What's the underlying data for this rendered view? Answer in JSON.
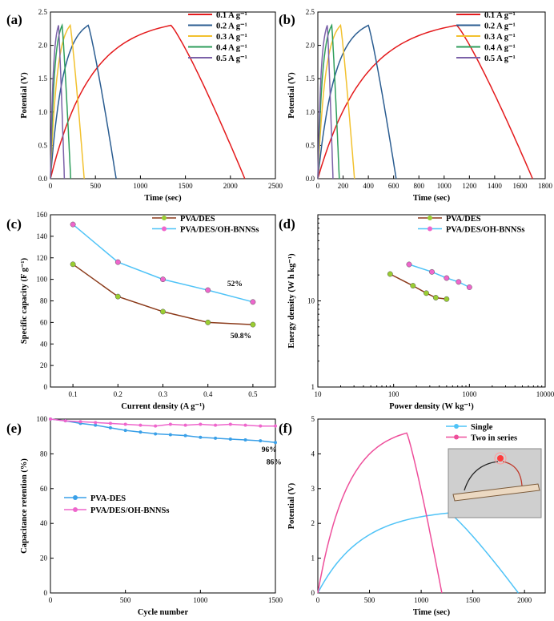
{
  "chart_data": [
    {
      "panel": "(a)",
      "type": "line",
      "xlabel": "Time (sec)",
      "ylabel": "Potential (V)",
      "xlim": [
        0,
        2500
      ],
      "ylim": [
        0,
        2.5
      ],
      "xticks": [
        "0",
        "500",
        "1000",
        "1500",
        "2000",
        "2500"
      ],
      "yticks": [
        "0.0",
        "0.5",
        "1.0",
        "1.5",
        "2.0",
        "2.5"
      ],
      "legend": "top-right",
      "series": [
        {
          "name": "0.1 A g⁻¹",
          "color": "#e41a1c",
          "charge_end": 1340,
          "discharge_end": 2160,
          "vmax": 2.3
        },
        {
          "name": "0.2 A g⁻¹",
          "color": "#2b5d91",
          "charge_end": 420,
          "discharge_end": 730,
          "vmax": 2.3
        },
        {
          "name": "0.3 A g⁻¹",
          "color": "#f2c12e",
          "charge_end": 220,
          "discharge_end": 375,
          "vmax": 2.3
        },
        {
          "name": "0.4 A g⁻¹",
          "color": "#2e9e5b",
          "charge_end": 130,
          "discharge_end": 225,
          "vmax": 2.3
        },
        {
          "name": "0.5 A g⁻¹",
          "color": "#7b61a8",
          "charge_end": 90,
          "discharge_end": 155,
          "vmax": 2.3
        }
      ]
    },
    {
      "panel": "(b)",
      "type": "line",
      "xlabel": "Time (sec)",
      "ylabel": "Potential (V)",
      "xlim": [
        0,
        1800
      ],
      "ylim": [
        0,
        2.5
      ],
      "xticks": [
        "0",
        "200",
        "400",
        "600",
        "800",
        "1000",
        "1200",
        "1400",
        "1600",
        "1800"
      ],
      "yticks": [
        "0.0",
        "0.5",
        "1.0",
        "1.5",
        "2.0",
        "2.5"
      ],
      "legend": "top-right",
      "series": [
        {
          "name": "0.1 A g⁻¹",
          "color": "#e41a1c",
          "charge_end": 1100,
          "discharge_end": 1700,
          "vmax": 2.3
        },
        {
          "name": "0.2 A g⁻¹",
          "color": "#2b5d91",
          "charge_end": 400,
          "discharge_end": 620,
          "vmax": 2.3
        },
        {
          "name": "0.3 A g⁻¹",
          "color": "#f2c12e",
          "charge_end": 180,
          "discharge_end": 290,
          "vmax": 2.3
        },
        {
          "name": "0.4 A g⁻¹",
          "color": "#2e9e5b",
          "charge_end": 110,
          "discharge_end": 170,
          "vmax": 2.3
        },
        {
          "name": "0.5 A g⁻¹",
          "color": "#7b61a8",
          "charge_end": 75,
          "discharge_end": 120,
          "vmax": 2.3
        }
      ]
    },
    {
      "panel": "(c)",
      "type": "line",
      "xlabel": "Current density (A g⁻¹)",
      "ylabel": "Specific capacity (F g⁻¹)",
      "xlim": [
        0.05,
        0.55
      ],
      "ylim": [
        0,
        160
      ],
      "xticks": [
        "0.1",
        "0.2",
        "0.3",
        "0.4",
        "0.5"
      ],
      "yticks": [
        "0",
        "20",
        "40",
        "60",
        "80",
        "100",
        "120",
        "140",
        "160"
      ],
      "legend": "top-right",
      "x": [
        0.1,
        0.2,
        0.3,
        0.4,
        0.5
      ],
      "series": [
        {
          "name": "PVA/DES",
          "color": "#8b3a1a",
          "marker": "#9acd32",
          "values": [
            114,
            84,
            70,
            60,
            58
          ]
        },
        {
          "name": "PVA/DES/OH-BNNSs",
          "color": "#4fc3f7",
          "marker": "#ee66cc",
          "values": [
            151,
            116,
            100,
            90,
            79
          ]
        }
      ],
      "annotations": [
        "52%",
        "50.8%"
      ]
    },
    {
      "panel": "(d)",
      "type": "line",
      "xlabel": "Power density (W kg⁻¹)",
      "ylabel": "Energy density (W h kg⁻¹)",
      "xscale": "log",
      "yscale": "log",
      "xlim": [
        10,
        10000
      ],
      "ylim": [
        1,
        100
      ],
      "xticks": [
        "10",
        "100",
        "1000",
        "10000"
      ],
      "yticks": [
        "1",
        "10"
      ],
      "legend": "top-right",
      "series": [
        {
          "name": "PVA/DES",
          "color": "#8b3a1a",
          "marker": "#9acd32",
          "x": [
            90,
            180,
            270,
            360,
            500
          ],
          "values": [
            20.5,
            15.0,
            12.3,
            10.9,
            10.5
          ]
        },
        {
          "name": "PVA/DES/OH-BNNSs",
          "color": "#4fc3f7",
          "marker": "#ee66cc",
          "x": [
            160,
            320,
            500,
            720,
            1000
          ],
          "values": [
            26.5,
            21.7,
            18.4,
            16.6,
            14.4
          ]
        }
      ]
    },
    {
      "panel": "(e)",
      "type": "line",
      "xlabel": "Cycle number",
      "ylabel": "Capacitance retention (%)",
      "xlim": [
        0,
        1500
      ],
      "ylim": [
        0,
        100
      ],
      "xticks": [
        "0",
        "500",
        "1000",
        "1500"
      ],
      "yticks": [
        "0",
        "20",
        "40",
        "60",
        "80",
        "100"
      ],
      "legend": "center-left",
      "series": [
        {
          "name": "PVA-DES",
          "color": "#3aa0e8",
          "x": [
            0,
            100,
            200,
            300,
            400,
            500,
            600,
            700,
            800,
            900,
            1000,
            1100,
            1200,
            1300,
            1400,
            1500
          ],
          "values": [
            100,
            99,
            97.5,
            96.5,
            95,
            93.5,
            92.5,
            91.5,
            91,
            90.5,
            89.5,
            89,
            88.5,
            88,
            87.5,
            86.5
          ]
        },
        {
          "name": "PVA/DES/OH-BNNSs",
          "color": "#ee66cc",
          "x": [
            0,
            100,
            200,
            300,
            400,
            500,
            600,
            700,
            800,
            900,
            1000,
            1100,
            1200,
            1300,
            1400,
            1500
          ],
          "values": [
            100,
            99,
            98.5,
            98,
            97.5,
            97,
            96.5,
            96,
            97,
            96.5,
            97,
            96.5,
            97,
            96.5,
            96,
            96
          ]
        }
      ],
      "annotations": [
        "96%",
        "86%"
      ]
    },
    {
      "panel": "(f)",
      "type": "line",
      "xlabel": "Time (sec)",
      "ylabel": "Potential (V)",
      "xlim": [
        0,
        2200
      ],
      "ylim": [
        0,
        5
      ],
      "xticks": [
        "0",
        "500",
        "1000",
        "1500",
        "2000"
      ],
      "yticks": [
        "0",
        "1",
        "2",
        "3",
        "4",
        "5"
      ],
      "legend": "top-right",
      "series": [
        {
          "name": "Single",
          "color": "#4fc3f7",
          "charge_end": 1270,
          "discharge_end": 1940,
          "vmax": 2.3
        },
        {
          "name": "Two in series",
          "color": "#ee4f9b",
          "charge_end": 860,
          "discharge_end": 1200,
          "vmax": 4.6
        }
      ]
    }
  ]
}
